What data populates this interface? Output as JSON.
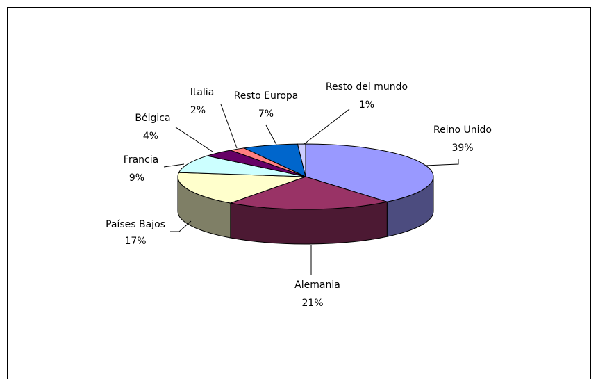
{
  "chart_data": {
    "type": "pie3d",
    "categories": [
      "Reino Unido",
      "Alemania",
      "Países Bajos",
      "Francia",
      "Bélgica",
      "Italia",
      "Resto Europa",
      "Resto del mundo"
    ],
    "values": [
      39,
      21,
      17,
      9,
      4,
      2,
      7,
      1
    ],
    "value_labels": [
      "39%",
      "21%",
      "17%",
      "9%",
      "4%",
      "2%",
      "7%",
      "1%"
    ],
    "colors": [
      "#9999ff",
      "#993366",
      "#ffffcc",
      "#ccffff",
      "#660066",
      "#ff8080",
      "#0066cc",
      "#ccccff"
    ]
  }
}
